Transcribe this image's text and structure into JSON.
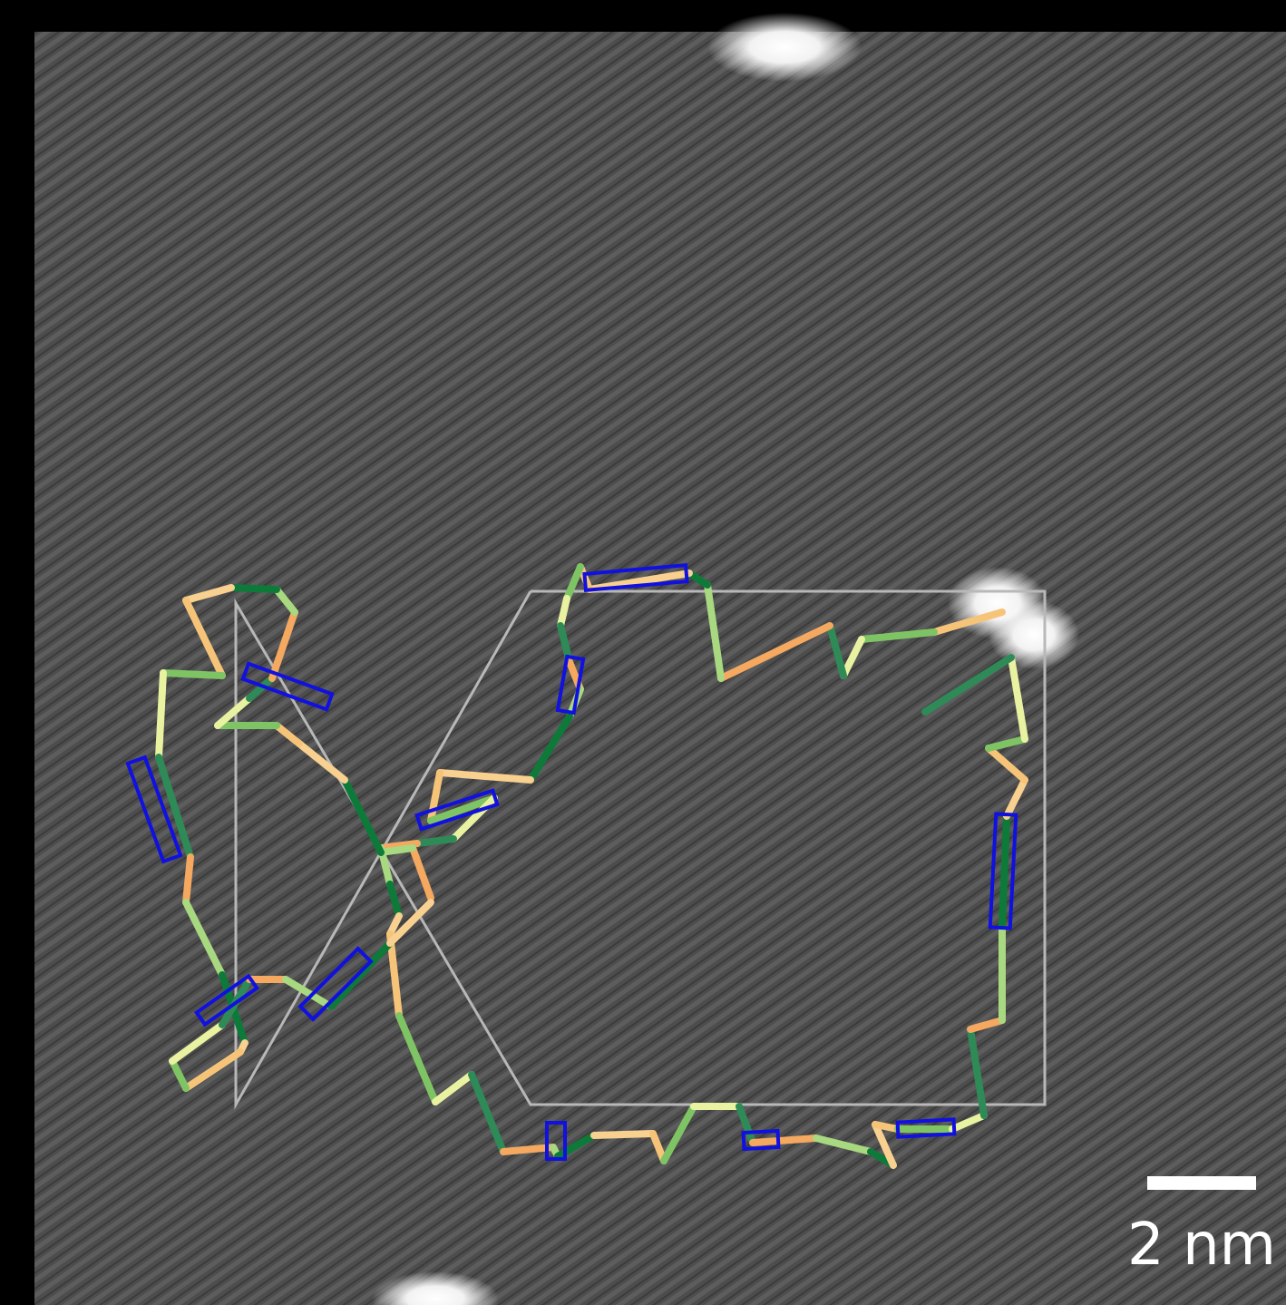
{
  "scale_bar": {
    "label": "2 nm"
  }
}
